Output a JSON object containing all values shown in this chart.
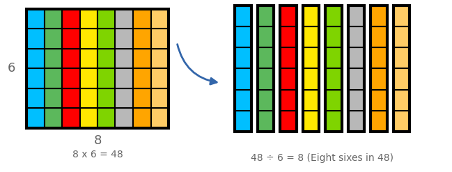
{
  "grid_colors": [
    "#00BFFF",
    "#5CB85C",
    "#FF0000",
    "#FFE800",
    "#7FD400",
    "#B8B8B8",
    "#FFA500",
    "#FFCC66"
  ],
  "n_cols": 8,
  "n_rows": 6,
  "arrow_color": "#3366AA",
  "text_color": "#666666",
  "eq_left": "8 x 6 = 48",
  "eq_right": "48 ÷ 6 = 8 (Eight sixes in 48)",
  "background_color": "#FFFFFF",
  "fig_width": 6.49,
  "fig_height": 2.47,
  "dpi": 100
}
